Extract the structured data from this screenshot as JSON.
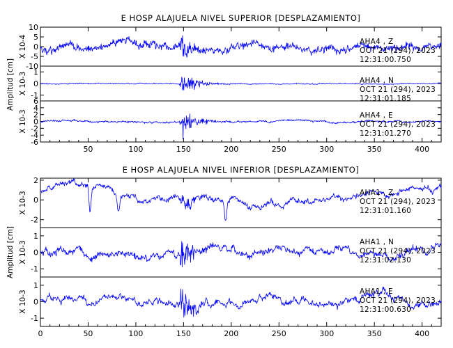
{
  "chart_data": [
    {
      "type": "line",
      "title": "E HOSP ALAJUELA NIVEL SUPERIOR [DESPLAZAMIENTO]",
      "ylabel": "Amplitud [cm]",
      "xlim": [
        0,
        420
      ],
      "xticks": [
        50,
        100,
        150,
        200,
        250,
        300,
        350,
        400
      ],
      "xtick_labels": [
        "50",
        "100",
        "150",
        "200",
        "250",
        "300",
        "350",
        "400"
      ],
      "event_time": 148,
      "traces": [
        {
          "name": "Z",
          "scale_label": "X 10-4",
          "ylim": [
            -10,
            10
          ],
          "yticks": [
            -10,
            -5,
            0,
            5,
            10
          ],
          "ytick_labels": [
            "-10",
            "-5",
            "0",
            "5",
            "10"
          ],
          "station": "AHA4 , Z",
          "date": "OCT 21 (294), 2023",
          "time": "12:31:00.750",
          "noise": 3.0,
          "wander": 2.0,
          "event_amp": 4.5,
          "drift": [
            0
          ],
          "seed": 11,
          "color": "#0000ff"
        },
        {
          "name": "N",
          "scale_label": "X 10-3",
          "ylim": [
            -1.5,
            1.5
          ],
          "yticks": [
            -1,
            0,
            1
          ],
          "ytick_labels": [
            "-1",
            "0",
            "1"
          ],
          "station": "AHA4 , N",
          "date": "OCT 21 (294), 2023",
          "time": "12:31:01.185",
          "noise": 0.06,
          "wander": 0.04,
          "event_amp": 1.25,
          "drift": [
            0
          ],
          "seed": 23,
          "color": "#0000ff"
        },
        {
          "name": "E",
          "scale_label": "X 10-3",
          "ylim": [
            -6,
            6
          ],
          "yticks": [
            -6,
            -4,
            -2,
            0,
            2,
            4,
            6
          ],
          "ytick_labels": [
            "-6",
            "-4",
            "-2",
            "0",
            "2",
            "4",
            "6"
          ],
          "station": "AHA4 , E",
          "date": "OCT 21 (294), 2023",
          "time": "12:31:01.270",
          "noise": 0.4,
          "wander": 0.3,
          "event_amp": 4.5,
          "drift": [
            0
          ],
          "seed": 37,
          "color": "#0000ff"
        }
      ]
    },
    {
      "type": "line",
      "title": "E HOSP ALAJUELA NIVEL INFERIOR [DESPLAZAMIENTO]",
      "ylabel": "Amplitud [cm]",
      "xlim": [
        0,
        420
      ],
      "xticks": [
        0,
        50,
        100,
        150,
        200,
        250,
        300,
        350,
        400
      ],
      "xtick_labels": [
        "0",
        "50",
        "100",
        "150",
        "200",
        "250",
        "300",
        "350",
        "400"
      ],
      "event_time": 148,
      "traces": [
        {
          "name": "Z",
          "scale_label": "X 10-3",
          "ylim": [
            -2.8,
            2.2
          ],
          "yticks": [
            -2,
            0,
            2
          ],
          "ytick_labels": [
            "-2",
            "0",
            "2"
          ],
          "station": "AHA1 , Z",
          "date": "OCT 21 (294), 2023",
          "time": "12:31:01.160",
          "noise": 0.3,
          "wander": 0.5,
          "event_amp": 1.0,
          "drift": [
            1.2,
            1.2,
            1.0,
            0.6,
            0.4,
            0.2,
            0.0,
            -0.3,
            -0.6,
            -0.6,
            -0.3,
            -0.2,
            -0.1,
            0.2,
            0.5,
            1.0,
            1.3
          ],
          "spikes": [
            [
              52,
              -2.6
            ],
            [
              82,
              -1.6
            ],
            [
              194,
              -2.3
            ]
          ],
          "seed": 53,
          "color": "#0000ff"
        },
        {
          "name": "N",
          "scale_label": "X 10-3",
          "ylim": [
            -1.5,
            1.5
          ],
          "yticks": [
            -1,
            0,
            1
          ],
          "ytick_labels": [
            "-1",
            "0",
            "1"
          ],
          "station": "AHA1 , N",
          "date": "OCT 21 (294), 2023",
          "time": "12:31:02.130",
          "noise": 0.25,
          "wander": 0.3,
          "event_amp": 0.9,
          "drift": [
            0
          ],
          "seed": 71,
          "color": "#0000ff"
        },
        {
          "name": "E",
          "scale_label": "X 10-3",
          "ylim": [
            -1.5,
            1.5
          ],
          "yticks": [
            -1,
            0,
            1
          ],
          "ytick_labels": [
            "-1",
            "0",
            "1"
          ],
          "station": "AHA1 , E",
          "date": "OCT 21 (294), 2023",
          "time": "12:31:00.630",
          "noise": 0.2,
          "wander": 0.35,
          "event_amp": 1.1,
          "drift": [
            0
          ],
          "seed": 89,
          "color": "#0000ff"
        }
      ]
    }
  ]
}
